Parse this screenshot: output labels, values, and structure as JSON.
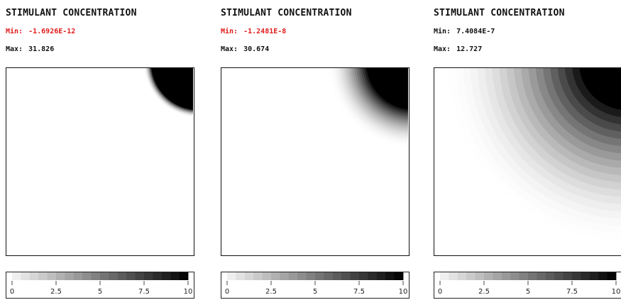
{
  "colors": {
    "min_highlight": "#e01b1b",
    "text": "#111111",
    "dark": "#000000",
    "light": "#ffffff"
  },
  "panels": [
    {
      "title": "STIMULANT CONCENTRATION",
      "min_label": "Min:",
      "min_value": "-1.6926E-12",
      "min_highlight": true,
      "max_label": "Max:",
      "max_value": "31.826",
      "spread": 0.04
    },
    {
      "title": "STIMULANT CONCENTRATION",
      "min_label": "Min:",
      "min_value": "-1.2481E-8",
      "min_highlight": true,
      "max_label": "Max:",
      "max_value": "30.674",
      "spread": 0.2
    },
    {
      "title": "STIMULANT CONCENTRATION",
      "min_label": "Min:",
      "min_value": "7.4084E-7",
      "min_highlight": false,
      "max_label": "Max:",
      "max_value": "12.727",
      "spread": 0.7
    }
  ],
  "colorbar": {
    "min": 0,
    "max": 10,
    "ticks": [
      {
        "value": 0,
        "label": "0"
      },
      {
        "value": 2.5,
        "label": "2.5"
      },
      {
        "value": 5,
        "label": "5"
      },
      {
        "value": 7.5,
        "label": "7.5"
      },
      {
        "value": 10,
        "label": "10"
      }
    ],
    "levels": 20
  }
}
